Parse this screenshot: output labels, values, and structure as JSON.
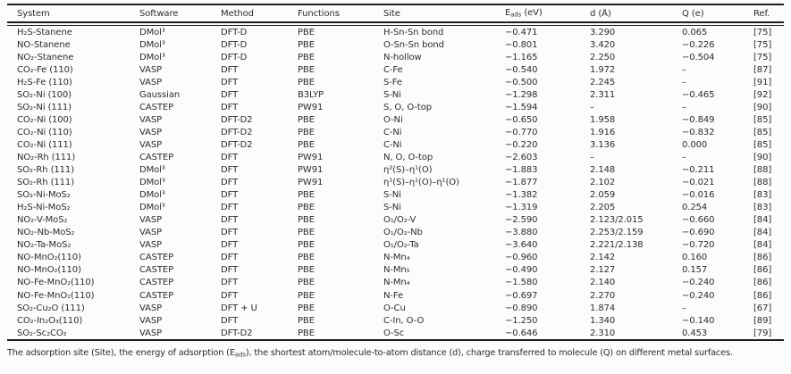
{
  "colors": {
    "background": "#fcfcfc",
    "text": "#2d2d2d",
    "rule": "#1f1f1f"
  },
  "table": {
    "headers": {
      "system": "System",
      "software": "Software",
      "method": "Method",
      "functions": "Functions",
      "site": "Site",
      "eads_pre": "E",
      "eads_sub": "ads",
      "eads_post": " (eV)",
      "d": "d (Å)",
      "q": "Q (e)",
      "ref": "Ref."
    },
    "rows": [
      [
        "H₂S-Stanene",
        "DMol³",
        "DFT-D",
        "PBE",
        "H-Sn-Sn bond",
        "−0.471",
        "3.290",
        "0.065",
        "[75]"
      ],
      [
        "NO-Stanene",
        "DMol³",
        "DFT-D",
        "PBE",
        "O-Sn-Sn bond",
        "−0.801",
        "3.420",
        "−0.226",
        "[75]"
      ],
      [
        "NO₂-Stanene",
        "DMol³",
        "DFT-D",
        "PBE",
        "N-hollow",
        "−1.165",
        "2.250",
        "−0.504",
        "[75]"
      ],
      [
        "CO₂-Fe (110)",
        "VASP",
        "DFT",
        "PBE",
        "C-Fe",
        "−0.540",
        "1.972",
        "–",
        "[87]"
      ],
      [
        "H₂S-Fe (110)",
        "VASP",
        "DFT",
        "PBE",
        "S-Fe",
        "−0.500",
        "2.245",
        "–",
        "[91]"
      ],
      [
        "SO₂-Ni (100)",
        "Gaussian",
        "DFT",
        "B3LYP",
        "S-Ni",
        "−1.298",
        "2.311",
        "−0.465",
        "[92]"
      ],
      [
        "SO₂-Ni (111)",
        "CASTEP",
        "DFT",
        "PW91",
        "S, O, O-top",
        "−1.594",
        "–",
        "–",
        "[90]"
      ],
      [
        "CO₂-Ni (100)",
        "VASP",
        "DFT-D2",
        "PBE",
        "O-Ni",
        "−0.650",
        "1.958",
        "−0.849",
        "[85]"
      ],
      [
        "CO₂-Ni (110)",
        "VASP",
        "DFT-D2",
        "PBE",
        "C-Ni",
        "−0.770",
        "1.916",
        "−0.832",
        "[85]"
      ],
      [
        "CO₂-Ni (111)",
        "VASP",
        "DFT-D2",
        "PBE",
        "C-Ni",
        "−0.220",
        "3.136",
        "0.000",
        "[85]"
      ],
      [
        "NO₂-Rh (111)",
        "CASTEP",
        "DFT",
        "PW91",
        "N, O, O-top",
        "−2.603",
        "–",
        "–",
        "[90]"
      ],
      [
        "SO₂-Rh (111)",
        "DMol³",
        "DFT",
        "PW91",
        "η²(S)–η¹(O)",
        "−1.883",
        "2.148",
        "−0.211",
        "[88]"
      ],
      [
        "SO₂-Rh (111)",
        "DMol³",
        "DFT",
        "PW91",
        "η¹(S)–η¹(O)–η¹(O)",
        "−1.877",
        "2.102",
        "−0.021",
        "[88]"
      ],
      [
        "SO₂-Ni-MoS₂",
        "DMol³",
        "DFT",
        "PBE",
        "S-Ni",
        "−1.382",
        "2.059",
        "−0.016",
        "[83]"
      ],
      [
        "H₂S-Ni-MoS₂",
        "DMol³",
        "DFT",
        "PBE",
        "S-Ni",
        "−1.319",
        "2.205",
        "0.254",
        "[83]"
      ],
      [
        "NO₂-V-MoS₂",
        "VASP",
        "DFT",
        "PBE",
        "O₁/O₂-V",
        "−2.590",
        "2.123/2.015",
        "−0.660",
        "[84]"
      ],
      [
        "NO₂-Nb-MoS₂",
        "VASP",
        "DFT",
        "PBE",
        "O₁/O₂-Nb",
        "−3.880",
        "2.253/2.159",
        "−0.690",
        "[84]"
      ],
      [
        "NO₂-Ta-MoS₂",
        "VASP",
        "DFT",
        "PBE",
        "O₁/O₂-Ta",
        "−3.640",
        "2.221/2.138",
        "−0.720",
        "[84]"
      ],
      [
        "NO-MnO₂(110)",
        "CASTEP",
        "DFT",
        "PBE",
        "N-Mn₄",
        "−0.960",
        "2.142",
        "0.160",
        "[86]"
      ],
      [
        "NO-MnO₂(110)",
        "CASTEP",
        "DFT",
        "PBE",
        "N-Mn₅",
        "−0.490",
        "2.127",
        "0.157",
        "[86]"
      ],
      [
        "NO-Fe-MnO₂(110)",
        "CASTEP",
        "DFT",
        "PBE",
        "N-Mn₄",
        "−1.580",
        "2.140",
        "−0.240",
        "[86]"
      ],
      [
        "NO-Fe-MnO₂(110)",
        "CASTEP",
        "DFT",
        "PBE",
        "N-Fe",
        "−0.697",
        "2.270",
        "−0.240",
        "[86]"
      ],
      [
        "SO₂-Cu₂O (111)",
        "VASP",
        "DFT + U",
        "PBE",
        "O-Cu",
        "−0.890",
        "1.874",
        "–",
        "[67]"
      ],
      [
        "CO₂-In₂O₃(110)",
        "VASP",
        "DFT",
        "PBE",
        "C-In, O-O",
        "−1.250",
        "1.340",
        "−0.140",
        "[89]"
      ],
      [
        "SO₂-Sc₂CO₂",
        "VASP",
        "DFT-D2",
        "PBE",
        "O-Sc",
        "−0.646",
        "2.310",
        "0.453",
        "[79]"
      ]
    ]
  },
  "footnote": {
    "pre": "The adsorption site (Site), the energy of adsorption (E",
    "sub": "ads",
    "post": "), the shortest atom/molecule-to-atom distance (d), charge transferred to molecule (Q) on different metal surfaces."
  }
}
